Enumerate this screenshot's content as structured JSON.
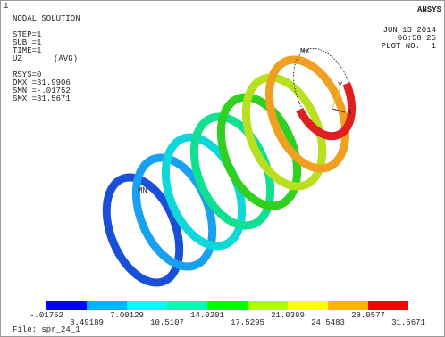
{
  "header": {
    "window_number": "1",
    "title": "NODAL SOLUTION",
    "info": [
      "STEP=1",
      "SUB =1",
      "TIME=1",
      "UZ",
      "RSYS=0",
      "DMX =31.9906",
      "SMN =-.01752",
      "SMX =31.5671"
    ],
    "avg": "(AVG)",
    "brand": "ANSYS",
    "date": "JUN 13 2014",
    "time": "06:58:25",
    "plot_label": "PLOT NO.",
    "plot_number": "1"
  },
  "triad": {
    "x": "X",
    "y": "Y"
  },
  "markers": {
    "min": "MN",
    "max": "MX"
  },
  "legend": {
    "labels": [
      "-.01752",
      "3.49189",
      "7.00129",
      "10.5107",
      "14.0201",
      "17.5295",
      "21.0389",
      "24.5483",
      "28.0577",
      "31.5671"
    ]
  },
  "footer": {
    "file": "File: spr_24_1"
  }
}
